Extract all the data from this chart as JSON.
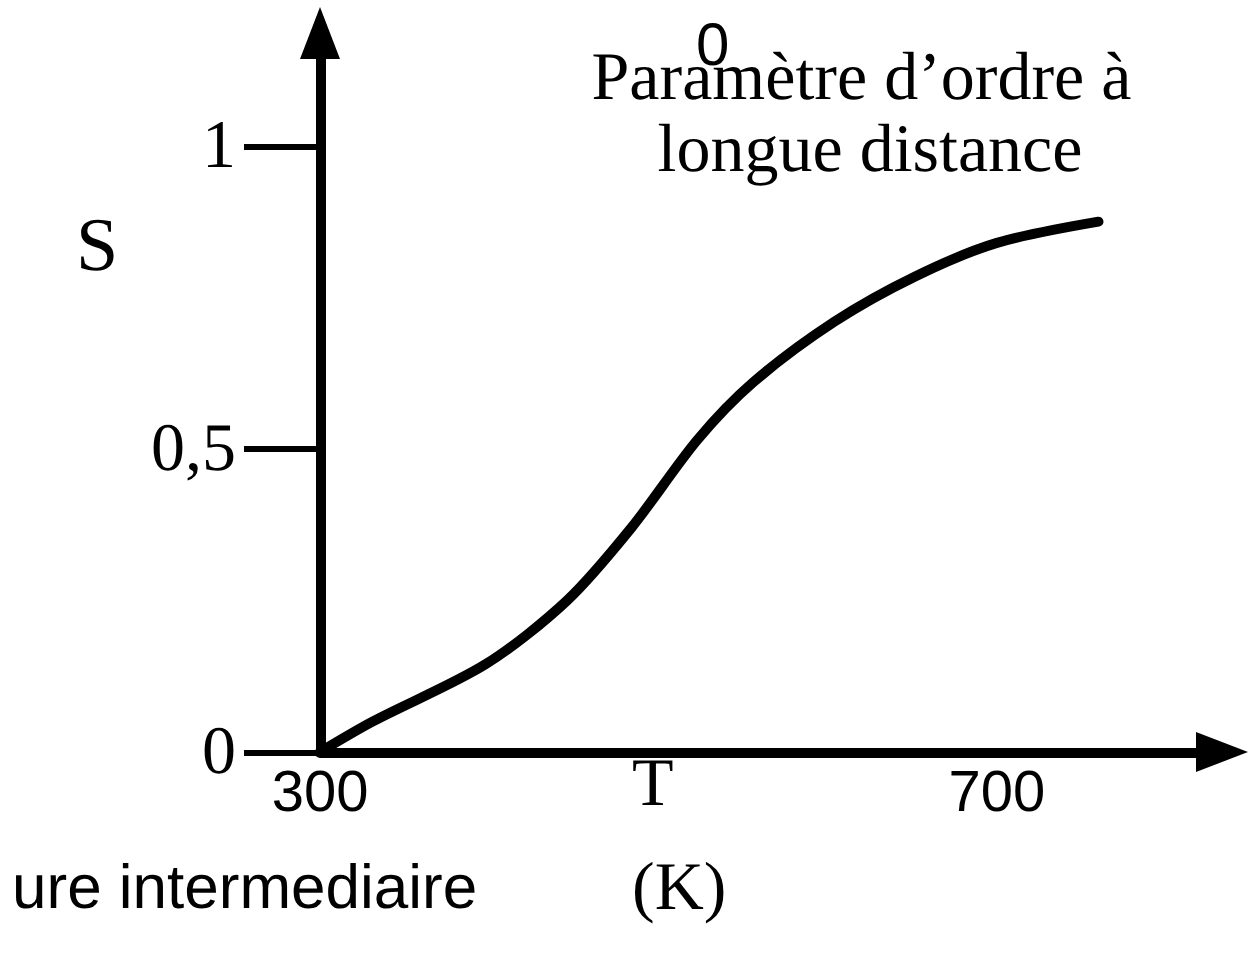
{
  "chart_data": {
    "type": "line",
    "title": "Paramètre d’ordre à longue distance",
    "xlabel": "T\n(K)",
    "ylabel": "S",
    "annotations": [
      "0",
      "ure intermediaire"
    ],
    "x": [
      300,
      331,
      398,
      446,
      484,
      523,
      556,
      604,
      652,
      700,
      760
    ],
    "series": [
      {
        "color": "#000000",
        "values": [
          0,
          0.05,
          0.145,
          0.25,
          0.37,
          0.515,
          0.61,
          0.71,
          0.785,
          0.84,
          0.875
        ]
      }
    ],
    "xlim": [
      300,
      820
    ],
    "ylim": [
      0,
      1.15
    ],
    "xticks": [
      300,
      700
    ],
    "yticks": [
      0,
      {
        "value": 0.5,
        "label": "0,5"
      },
      1
    ],
    "grid": false,
    "marker": "none",
    "line_style": "solid"
  }
}
